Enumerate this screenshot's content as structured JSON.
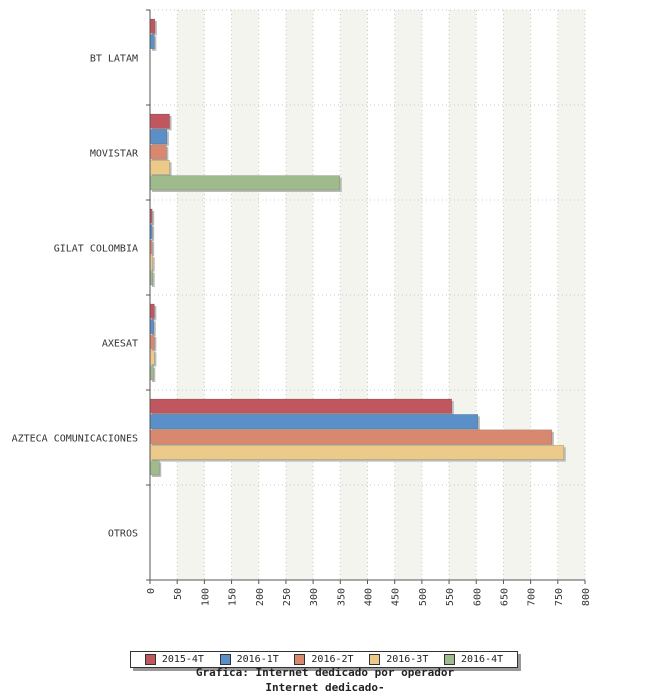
{
  "chart_data": {
    "type": "bar",
    "orientation": "horizontal",
    "title": "Grafica: Internet dedicado por operador",
    "subtitle": "Internet dedicado-",
    "xlabel": "",
    "ylabel": "",
    "xlim": [
      0,
      800
    ],
    "x_ticks": [
      0,
      50,
      100,
      150,
      200,
      250,
      300,
      350,
      400,
      450,
      500,
      550,
      600,
      650,
      700,
      750,
      800
    ],
    "grid": true,
    "legend_position": "bottom",
    "categories": [
      "BT LATAM",
      "MOVISTAR",
      "GILAT COLOMBIA",
      "AXESAT",
      "AZTECA COMUNICACIONES",
      "OTROS"
    ],
    "series": [
      {
        "name": "2015-4T",
        "color": "#c0575f",
        "values": [
          9,
          36,
          4,
          8,
          555,
          0
        ]
      },
      {
        "name": "2016-1T",
        "color": "#5b8fc7",
        "values": [
          8,
          31,
          4,
          7,
          603,
          0
        ]
      },
      {
        "name": "2016-2T",
        "color": "#d98870",
        "values": [
          0,
          30,
          4,
          8,
          739,
          0
        ]
      },
      {
        "name": "2016-3T",
        "color": "#eccb8a",
        "values": [
          0,
          36,
          5,
          8,
          761,
          0
        ]
      },
      {
        "name": "2016-4T",
        "color": "#9fbb8c",
        "values": [
          0,
          349,
          5,
          6,
          17,
          0
        ]
      }
    ]
  }
}
